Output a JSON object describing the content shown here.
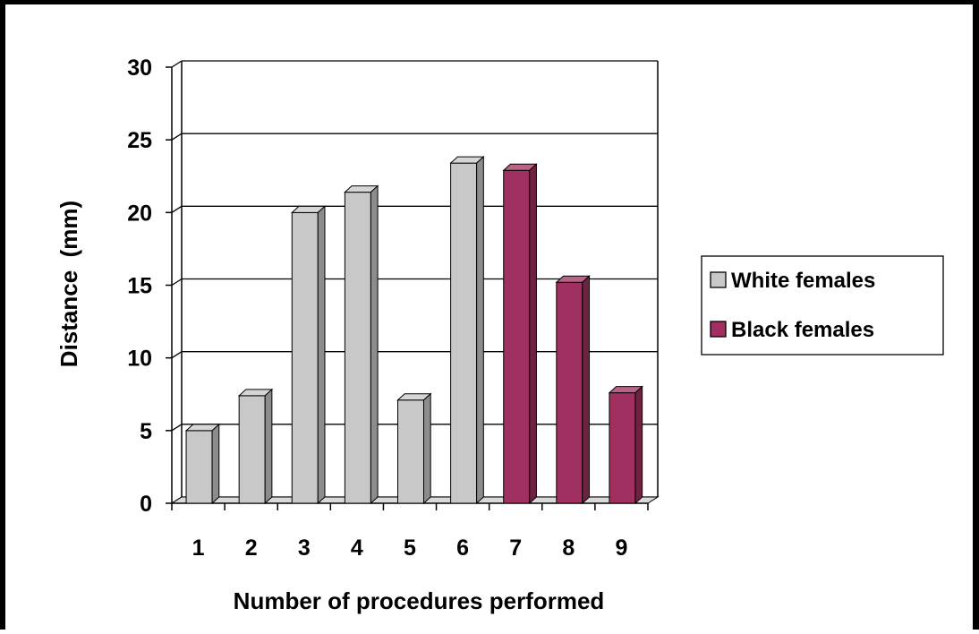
{
  "chart_data": {
    "type": "bar",
    "style": "3d-clustered-column",
    "categories": [
      "1",
      "2",
      "3",
      "4",
      "5",
      "6",
      "7",
      "8",
      "9"
    ],
    "series": [
      {
        "name": "White females",
        "color": "#C8C8C8",
        "values": [
          5,
          7.4,
          20,
          21.4,
          7.1,
          23.4,
          null,
          null,
          null
        ]
      },
      {
        "name": "Black females",
        "color": "#A0305F",
        "values": [
          null,
          null,
          null,
          null,
          null,
          null,
          22.9,
          15.2,
          7.6
        ]
      }
    ],
    "xlabel": "Number of procedures performed",
    "ylabel": "Distance  (mm)",
    "ylim": [
      0,
      30
    ],
    "yticks": [
      0,
      5,
      10,
      15,
      20,
      25,
      30
    ],
    "grid": true,
    "legend_position": "right"
  }
}
